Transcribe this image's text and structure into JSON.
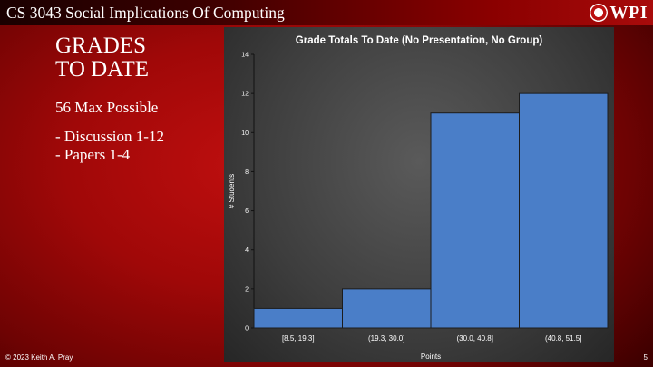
{
  "header": {
    "course_title": "CS 3043 Social Implications Of Computing",
    "logo_text": "WPI"
  },
  "slide": {
    "heading_line1": "GRADES",
    "heading_line2": "TO DATE",
    "max_possible": "56 Max Possible",
    "items": [
      "- Discussion 1-12",
      "- Papers 1-4"
    ]
  },
  "footer": {
    "copyright": "© 2023 Keith A. Pray",
    "page_number": "5"
  },
  "chart_data": {
    "type": "bar",
    "title": "Grade Totals To Date (No Presentation, No Group)",
    "xlabel": "Points",
    "ylabel": "# Students",
    "categories": [
      "[8.5, 19.3]",
      "(19.3, 30.0]",
      "(30.0, 40.8]",
      "(40.8, 51.5]"
    ],
    "values": [
      1,
      2,
      11,
      12
    ],
    "ylim": [
      0,
      14
    ],
    "yticks": [
      0,
      2,
      4,
      6,
      8,
      10,
      12,
      14
    ],
    "grid": false,
    "bar_color": "#4a7ec8"
  }
}
